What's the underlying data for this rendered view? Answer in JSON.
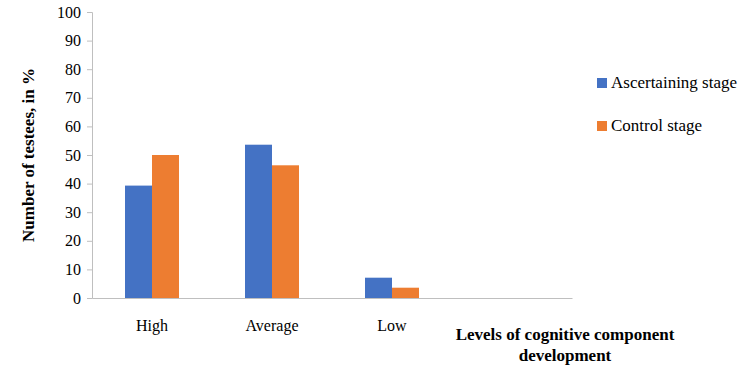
{
  "chart_data": {
    "type": "bar",
    "y_label": "Number of testees, in %",
    "x_label": "Levels of cognitive component development",
    "categories": [
      "High",
      "Average",
      "Low",
      null
    ],
    "series": [
      {
        "name": "Ascertaining stage",
        "color": "#4472c4",
        "values": [
          39.3,
          53.6,
          7.1,
          null
        ]
      },
      {
        "name": "Control stage",
        "color": "#ed7d31",
        "values": [
          50,
          46.4,
          3.6,
          null
        ]
      }
    ],
    "ylim": [
      0,
      100
    ],
    "yticks": [
      0,
      10,
      20,
      30,
      40,
      50,
      60,
      70,
      80,
      90,
      100
    ],
    "grid": false,
    "legend": "right"
  }
}
